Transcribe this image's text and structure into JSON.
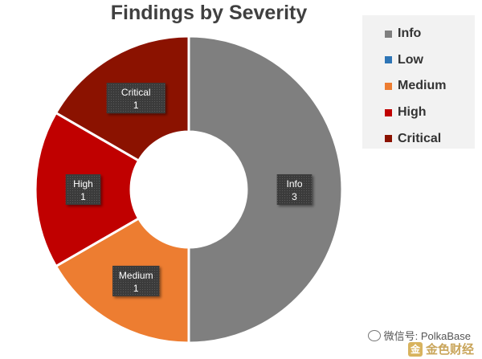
{
  "chart_data": {
    "type": "pie",
    "title": "Findings by Severity",
    "legend_position": "top-right",
    "slices": [
      {
        "label": "Info",
        "value": 3,
        "color": "#7f7f7f"
      },
      {
        "label": "Low",
        "value": 0,
        "color": "#2e75b6"
      },
      {
        "label": "Medium",
        "value": 1,
        "color": "#ed7d31"
      },
      {
        "label": "High",
        "value": 1,
        "color": "#c00000"
      },
      {
        "label": "Critical",
        "value": 1,
        "color": "#8b1200"
      }
    ]
  },
  "watermark": {
    "line1": "微信号: PolkaBase",
    "line2": "金色财经",
    "logo_char": "金"
  }
}
